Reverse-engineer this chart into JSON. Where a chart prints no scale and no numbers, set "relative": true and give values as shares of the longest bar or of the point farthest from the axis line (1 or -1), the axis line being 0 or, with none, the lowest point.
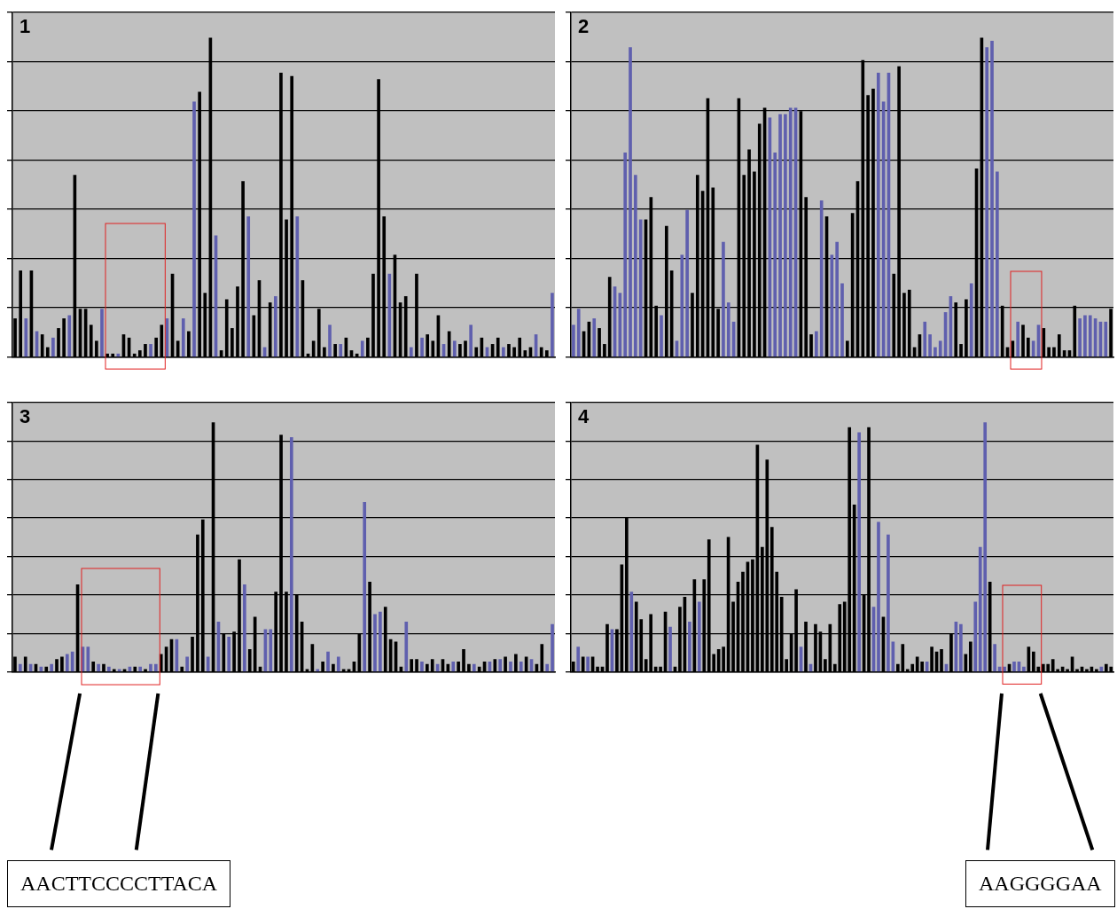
{
  "chart_data": [
    {
      "type": "bar",
      "title": "1",
      "relative": true,
      "grid": "y",
      "categories": [
        null,
        null,
        null,
        null,
        null,
        null,
        null,
        null,
        null,
        null,
        null,
        null,
        null,
        null,
        null,
        null,
        null,
        null,
        null,
        null,
        null,
        null,
        null,
        null,
        null,
        null,
        null,
        null,
        null,
        null,
        null,
        null,
        null,
        null,
        null,
        null,
        null,
        null,
        null,
        null,
        null,
        null,
        null,
        null,
        null,
        null,
        null,
        null,
        null,
        null,
        null,
        null,
        null,
        null,
        null,
        null,
        null,
        null,
        null,
        null,
        null,
        null,
        null,
        null,
        null,
        null,
        null,
        null,
        null,
        null,
        null,
        null,
        null,
        null,
        null,
        null,
        null,
        null,
        null,
        null,
        null,
        null,
        null,
        null,
        null,
        null,
        null,
        null,
        null,
        null,
        null,
        null,
        null,
        null,
        null,
        null,
        null,
        null,
        null,
        null
      ],
      "values": [
        0.12,
        0.27,
        0.12,
        0.27,
        0.08,
        0.07,
        0.03,
        0.06,
        0.09,
        0.12,
        0.13,
        0.57,
        0.15,
        0.15,
        0.1,
        0.05,
        0.15,
        0.01,
        0.01,
        0.01,
        0.07,
        0.06,
        0.01,
        0.02,
        0.04,
        0.04,
        0.06,
        0.1,
        0.12,
        0.26,
        0.05,
        0.12,
        0.08,
        0.8,
        0.83,
        0.2,
        1,
        0.38,
        0.02,
        0.18,
        0.09,
        0.22,
        0.55,
        0.44,
        0.13,
        0.24,
        0.03,
        0.17,
        0.19,
        0.89,
        0.43,
        0.88,
        0.44,
        0.24,
        0.01,
        0.05,
        0.15,
        0.03,
        0.1,
        0.04,
        0.04,
        0.06,
        0.02,
        0.01,
        0.05,
        0.06,
        0.26,
        0.87,
        0.44,
        0.26,
        0.32,
        0.17,
        0.19,
        0.03,
        0.26,
        0.06,
        0.07,
        0.05,
        0.13,
        0.04,
        0.08,
        0.05,
        0.04,
        0.05,
        0.1,
        0.03,
        0.06,
        0.03,
        0.04,
        0.06,
        0.03,
        0.04,
        0.03,
        0.06,
        0.02,
        0.03,
        0.07,
        0.03,
        0.02,
        0.2
      ],
      "colors": [
        "#000000",
        "#000000",
        "#5f5fae",
        "#000000",
        "#5f5fae",
        "#000000",
        "#000000",
        "#5f5fae",
        "#000000",
        "#000000",
        "#5f5fae",
        "#000000",
        "#000000",
        "#000000",
        "#000000",
        "#000000",
        "#5f5fae",
        "#000000",
        "#000000",
        "#5f5fae",
        "#000000",
        "#000000",
        "#000000",
        "#000000",
        "#000000",
        "#5f5fae",
        "#000000",
        "#000000",
        "#5f5fae",
        "#000000",
        "#000000",
        "#5f5fae",
        "#000000",
        "#5f5fae",
        "#000000",
        "#000000",
        "#000000",
        "#5f5fae",
        "#000000",
        "#000000",
        "#000000",
        "#000000",
        "#000000",
        "#5f5fae",
        "#000000",
        "#000000",
        "#5f5fae",
        "#000000",
        "#5f5fae",
        "#000000",
        "#000000",
        "#000000",
        "#5f5fae",
        "#000000",
        "#000000",
        "#000000",
        "#000000",
        "#000000",
        "#5f5fae",
        "#000000",
        "#5f5fae",
        "#000000",
        "#000000",
        "#000000",
        "#5f5fae",
        "#000000",
        "#000000",
        "#000000",
        "#000000",
        "#5f5fae",
        "#000000",
        "#000000",
        "#000000",
        "#5f5fae",
        "#000000",
        "#5f5fae",
        "#000000",
        "#000000",
        "#000000",
        "#5f5fae",
        "#000000",
        "#5f5fae",
        "#000000",
        "#000000",
        "#5f5fae",
        "#000000",
        "#000000",
        "#5f5fae",
        "#000000",
        "#000000",
        "#5f5fae",
        "#000000",
        "#000000",
        "#000000",
        "#000000",
        "#000000",
        "#5f5fae",
        "#000000",
        "#000000",
        "#5f5fae"
      ]
    },
    {
      "type": "bar",
      "title": "2",
      "relative": true,
      "grid": "y",
      "categories": [
        null,
        null,
        null,
        null,
        null,
        null,
        null,
        null,
        null,
        null,
        null,
        null,
        null,
        null,
        null,
        null,
        null,
        null,
        null,
        null,
        null,
        null,
        null,
        null,
        null,
        null,
        null,
        null,
        null,
        null,
        null,
        null,
        null,
        null,
        null,
        null,
        null,
        null,
        null,
        null,
        null,
        null,
        null,
        null,
        null,
        null,
        null,
        null,
        null,
        null,
        null,
        null,
        null,
        null,
        null,
        null,
        null,
        null,
        null,
        null,
        null,
        null,
        null,
        null,
        null,
        null,
        null,
        null,
        null,
        null,
        null,
        null,
        null,
        null,
        null,
        null,
        null,
        null,
        null,
        null,
        null,
        null,
        null,
        null,
        null,
        null,
        null,
        null,
        null,
        null,
        null,
        null,
        null,
        null,
        null,
        null,
        null,
        null,
        null,
        null,
        null,
        null,
        null,
        null,
        null
      ],
      "values": [
        0.1,
        0.15,
        0.08,
        0.11,
        0.12,
        0.09,
        0.04,
        0.25,
        0.22,
        0.2,
        0.64,
        0.97,
        0.57,
        0.43,
        0.43,
        0.5,
        0.16,
        0.13,
        0.41,
        0.27,
        0.05,
        0.32,
        0.46,
        0.2,
        0.57,
        0.52,
        0.81,
        0.53,
        0.15,
        0.36,
        0.17,
        0.11,
        0.81,
        0.57,
        0.65,
        0.58,
        0.73,
        0.78,
        0.75,
        0.64,
        0.76,
        0.76,
        0.78,
        0.78,
        0.77,
        0.5,
        0.07,
        0.08,
        0.49,
        0.44,
        0.32,
        0.36,
        0.23,
        0.05,
        0.45,
        0.55,
        0.93,
        0.82,
        0.84,
        0.89,
        0.8,
        0.89,
        0.26,
        0.91,
        0.2,
        0.21,
        0.03,
        0.07,
        0.11,
        0.07,
        0.03,
        0.05,
        0.14,
        0.19,
        0.17,
        0.04,
        0.18,
        0.23,
        0.59,
        1,
        0.97,
        0.99,
        0.58,
        0.16,
        0.03,
        0.05,
        0.11,
        0.1,
        0.06,
        0.05,
        0.1,
        0.09,
        0.03,
        0.03,
        0.07,
        0.02,
        0.02,
        0.16,
        0.12,
        0.13,
        0.13,
        0.12,
        0.11,
        0.11,
        0.15
      ],
      "colors": [
        "#5f5fae",
        "#5f5fae",
        "#000000",
        "#000000",
        "#5f5fae",
        "#000000",
        "#000000",
        "#000000",
        "#5f5fae",
        "#5f5fae",
        "#5f5fae",
        "#5f5fae",
        "#5f5fae",
        "#5f5fae",
        "#000000",
        "#000000",
        "#000000",
        "#5f5fae",
        "#000000",
        "#000000",
        "#5f5fae",
        "#5f5fae",
        "#5f5fae",
        "#000000",
        "#000000",
        "#000000",
        "#000000",
        "#000000",
        "#000000",
        "#5f5fae",
        "#5f5fae",
        "#5f5fae",
        "#000000",
        "#000000",
        "#000000",
        "#000000",
        "#000000",
        "#000000",
        "#5f5fae",
        "#5f5fae",
        "#5f5fae",
        "#5f5fae",
        "#5f5fae",
        "#5f5fae",
        "#000000",
        "#000000",
        "#000000",
        "#5f5fae",
        "#5f5fae",
        "#000000",
        "#5f5fae",
        "#5f5fae",
        "#5f5fae",
        "#000000",
        "#000000",
        "#000000",
        "#000000",
        "#000000",
        "#000000",
        "#5f5fae",
        "#5f5fae",
        "#5f5fae",
        "#000000",
        "#000000",
        "#000000",
        "#000000",
        "#000000",
        "#000000",
        "#5f5fae",
        "#5f5fae",
        "#5f5fae",
        "#5f5fae",
        "#5f5fae",
        "#5f5fae",
        "#000000",
        "#000000",
        "#000000",
        "#5f5fae",
        "#000000",
        "#000000",
        "#5f5fae",
        "#5f5fae",
        "#5f5fae",
        "#000000",
        "#000000",
        "#000000",
        "#5f5fae",
        "#000000",
        "#000000",
        "#5f5fae",
        "#5f5fae",
        "#000000",
        "#000000",
        "#000000",
        "#000000",
        "#000000",
        "#000000",
        "#000000",
        "#5f5fae",
        "#5f5fae",
        "#5f5fae",
        "#5f5fae",
        "#5f5fae",
        "#5f5fae",
        "#000000"
      ]
    },
    {
      "type": "bar",
      "title": "3",
      "relative": true,
      "grid": "y",
      "annotations": [
        "AACTTCCCCTTACA"
      ],
      "categories": [
        null,
        null,
        null,
        null,
        null,
        null,
        null,
        null,
        null,
        null,
        null,
        null,
        null,
        null,
        null,
        null,
        null,
        null,
        null,
        null,
        null,
        null,
        null,
        null,
        null,
        null,
        null,
        null,
        null,
        null,
        null,
        null,
        null,
        null,
        null,
        null,
        null,
        null,
        null,
        null,
        null,
        null,
        null,
        null,
        null,
        null,
        null,
        null,
        null,
        null,
        null,
        null,
        null,
        null,
        null,
        null,
        null,
        null,
        null,
        null,
        null,
        null,
        null,
        null,
        null,
        null,
        null,
        null,
        null,
        null,
        null,
        null,
        null,
        null,
        null,
        null,
        null,
        null,
        null,
        null,
        null,
        null,
        null,
        null,
        null,
        null,
        null,
        null,
        null,
        null,
        null,
        null,
        null,
        null,
        null,
        null,
        null,
        null,
        null,
        null,
        null,
        null,
        null,
        null
      ],
      "values": [
        0.06,
        0.03,
        0.06,
        0.03,
        0.03,
        0.02,
        0.02,
        0.03,
        0.05,
        0.06,
        0.07,
        0.08,
        0.35,
        0.1,
        0.1,
        0.04,
        0.03,
        0.03,
        0.02,
        0.01,
        0.01,
        0.01,
        0.02,
        0.02,
        0.02,
        0.01,
        0.03,
        0.03,
        0.07,
        0.1,
        0.13,
        0.13,
        0.02,
        0.06,
        0.14,
        0.55,
        0.61,
        0.06,
        1,
        0.2,
        0.15,
        0.14,
        0.16,
        0.45,
        0.35,
        0.09,
        0.22,
        0.02,
        0.17,
        0.17,
        0.32,
        0.95,
        0.32,
        0.94,
        0.31,
        0.2,
        0.01,
        0.11,
        0.01,
        0.04,
        0.08,
        0.03,
        0.06,
        0.01,
        0.01,
        0.04,
        0.15,
        0.68,
        0.36,
        0.23,
        0.24,
        0.26,
        0.13,
        0.12,
        0.02,
        0.2,
        0.05,
        0.05,
        0.04,
        0.03,
        0.05,
        0.03,
        0.05,
        0.03,
        0.04,
        0.04,
        0.09,
        0.03,
        0.03,
        0.02,
        0.04,
        0.04,
        0.05,
        0.05,
        0.06,
        0.04,
        0.07,
        0.04,
        0.06,
        0.05,
        0.03,
        0.11,
        0.03,
        0.19
      ],
      "colors": [
        "#000000",
        "#5f5fae",
        "#000000",
        "#5f5fae",
        "#000000",
        "#5f5fae",
        "#000000",
        "#5f5fae",
        "#000000",
        "#000000",
        "#5f5fae",
        "#5f5fae",
        "#000000",
        "#5f5fae",
        "#5f5fae",
        "#000000",
        "#5f5fae",
        "#000000",
        "#5f5fae",
        "#000000",
        "#5f5fae",
        "#000000",
        "#5f5fae",
        "#000000",
        "#5f5fae",
        "#000000",
        "#5f5fae",
        "#5f5fae",
        "#000000",
        "#000000",
        "#000000",
        "#5f5fae",
        "#000000",
        "#5f5fae",
        "#000000",
        "#000000",
        "#000000",
        "#5f5fae",
        "#000000",
        "#5f5fae",
        "#000000",
        "#5f5fae",
        "#000000",
        "#000000",
        "#5f5fae",
        "#000000",
        "#000000",
        "#000000",
        "#5f5fae",
        "#5f5fae",
        "#000000",
        "#000000",
        "#000000",
        "#5f5fae",
        "#000000",
        "#000000",
        "#000000",
        "#000000",
        "#5f5fae",
        "#000000",
        "#5f5fae",
        "#000000",
        "#5f5fae",
        "#000000",
        "#000000",
        "#000000",
        "#000000",
        "#5f5fae",
        "#000000",
        "#5f5fae",
        "#5f5fae",
        "#000000",
        "#000000",
        "#000000",
        "#000000",
        "#5f5fae",
        "#000000",
        "#000000",
        "#5f5fae",
        "#000000",
        "#000000",
        "#5f5fae",
        "#000000",
        "#000000",
        "#5f5fae",
        "#000000",
        "#000000",
        "#000000",
        "#5f5fae",
        "#000000",
        "#000000",
        "#5f5fae",
        "#000000",
        "#5f5fae",
        "#000000",
        "#5f5fae",
        "#000000",
        "#5f5fae",
        "#000000",
        "#5f5fae",
        "#000000",
        "#000000",
        "#5f5fae",
        "#5f5fae"
      ]
    },
    {
      "type": "bar",
      "title": "4",
      "relative": true,
      "grid": "y",
      "annotations": [
        "AAGGGGAA"
      ],
      "categories": [
        null,
        null,
        null,
        null,
        null,
        null,
        null,
        null,
        null,
        null,
        null,
        null,
        null,
        null,
        null,
        null,
        null,
        null,
        null,
        null,
        null,
        null,
        null,
        null,
        null,
        null,
        null,
        null,
        null,
        null,
        null,
        null,
        null,
        null,
        null,
        null,
        null,
        null,
        null,
        null,
        null,
        null,
        null,
        null,
        null,
        null,
        null,
        null,
        null,
        null,
        null,
        null,
        null,
        null,
        null,
        null,
        null,
        null,
        null,
        null,
        null,
        null,
        null,
        null,
        null,
        null,
        null,
        null,
        null,
        null,
        null,
        null,
        null,
        null,
        null,
        null,
        null,
        null,
        null,
        null,
        null,
        null,
        null,
        null,
        null,
        null,
        null,
        null,
        null,
        null,
        null,
        null,
        null,
        null,
        null,
        null,
        null,
        null,
        null,
        null,
        null,
        null,
        null,
        null,
        null,
        null,
        null,
        null,
        null,
        null,
        null,
        null
      ],
      "values": [
        0.04,
        0.1,
        0.06,
        0.06,
        0.06,
        0.02,
        0.02,
        0.19,
        0.17,
        0.17,
        0.43,
        0.62,
        0.32,
        0.28,
        0.21,
        0.05,
        0.23,
        0.02,
        0.02,
        0.24,
        0.18,
        0.02,
        0.26,
        0.3,
        0.2,
        0.37,
        0.28,
        0.37,
        0.53,
        0.07,
        0.09,
        0.1,
        0.54,
        0.28,
        0.36,
        0.4,
        0.44,
        0.45,
        0.91,
        0.5,
        0.85,
        0.58,
        0.4,
        0.3,
        0.05,
        0.15,
        0.33,
        0.1,
        0.2,
        0.03,
        0.19,
        0.16,
        0.05,
        0.19,
        0.03,
        0.27,
        0.28,
        0.98,
        0.67,
        0.96,
        0.31,
        0.98,
        0.26,
        0.6,
        0.22,
        0.55,
        0.12,
        0.03,
        0.11,
        0.01,
        0.03,
        0.06,
        0.04,
        0.04,
        0.1,
        0.08,
        0.09,
        0.03,
        0.15,
        0.2,
        0.19,
        0.07,
        0.12,
        0.28,
        0.5,
        1,
        0.36,
        0.11,
        0.02,
        0.02,
        0.03,
        0.04,
        0.04,
        0.02,
        0.1,
        0.08,
        0.02,
        0.03,
        0.03,
        0.05,
        0.01,
        0.02,
        0.01,
        0.06,
        0.01,
        0.02,
        0.01,
        0.02,
        0.01,
        0.02,
        0.03,
        0.02
      ],
      "colors": [
        "#000000",
        "#5f5fae",
        "#000000",
        "#5f5fae",
        "#000000",
        "#000000",
        "#000000",
        "#000000",
        "#5f5fae",
        "#000000",
        "#000000",
        "#000000",
        "#5f5fae",
        "#000000",
        "#000000",
        "#000000",
        "#000000",
        "#000000",
        "#000000",
        "#000000",
        "#5f5fae",
        "#000000",
        "#000000",
        "#000000",
        "#5f5fae",
        "#000000",
        "#5f5fae",
        "#000000",
        "#000000",
        "#000000",
        "#000000",
        "#000000",
        "#000000",
        "#000000",
        "#000000",
        "#000000",
        "#000000",
        "#000000",
        "#000000",
        "#000000",
        "#000000",
        "#000000",
        "#000000",
        "#000000",
        "#000000",
        "#000000",
        "#000000",
        "#5f5fae",
        "#000000",
        "#5f5fae",
        "#000000",
        "#000000",
        "#000000",
        "#000000",
        "#000000",
        "#000000",
        "#000000",
        "#000000",
        "#000000",
        "#5f5fae",
        "#000000",
        "#000000",
        "#5f5fae",
        "#5f5fae",
        "#000000",
        "#5f5fae",
        "#5f5fae",
        "#000000",
        "#000000",
        "#000000",
        "#000000",
        "#000000",
        "#000000",
        "#5f5fae",
        "#000000",
        "#000000",
        "#000000",
        "#5f5fae",
        "#000000",
        "#5f5fae",
        "#5f5fae",
        "#000000",
        "#000000",
        "#5f5fae",
        "#5f5fae",
        "#5f5fae",
        "#000000",
        "#5f5fae",
        "#5f5fae",
        "#5f5fae",
        "#000000",
        "#5f5fae",
        "#5f5fae",
        "#5f5fae",
        "#000000",
        "#000000",
        "#000000",
        "#000000",
        "#000000",
        "#000000",
        "#000000",
        "#000000",
        "#000000",
        "#000000",
        "#000000",
        "#000000",
        "#000000",
        "#000000",
        "#000000",
        "#5f5fae",
        "#000000",
        "#000000"
      ]
    }
  ]
}
